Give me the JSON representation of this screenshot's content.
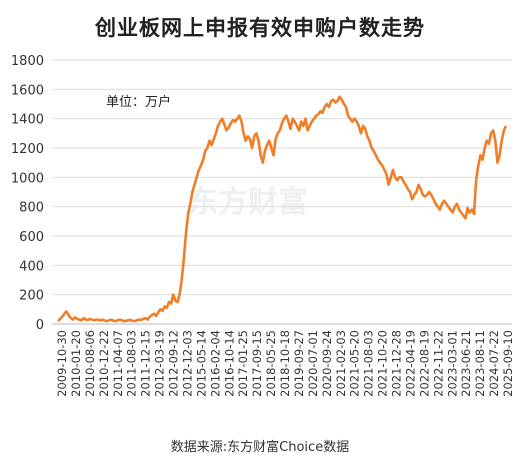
{
  "chart_data": {
    "type": "line",
    "title": "创业板网上申报有效申购户数走势",
    "unit_note": "单位：万户",
    "watermark": "东方财富",
    "source": "数据来源:东方财富Choice数据",
    "line_color": "#ef7e27",
    "ylim": [
      0,
      1800
    ],
    "y_ticks": [
      0,
      200,
      400,
      600,
      800,
      1000,
      1200,
      1400,
      1600,
      1800
    ],
    "x_tick_labels": [
      "2009-10-30",
      "2010-01-20",
      "2010-08-06",
      "2010-12-22",
      "2011-04-07",
      "2011-08-03",
      "2011-12-15",
      "2012-03-19",
      "2012-09-12",
      "2012-12-03",
      "2015-05-14",
      "2016-02-04",
      "2016-10-14",
      "2017-01-25",
      "2017-09-15",
      "2018-05-25",
      "2018-10-18",
      "2019-09-27",
      "2020-07-01",
      "2020-09-24",
      "2021-02-03",
      "2021-05-20",
      "2021-08-03",
      "2021-10-20",
      "2021-12-28",
      "2022-04-19",
      "2022-08-19",
      "2022-11-22",
      "2023-03-01",
      "2023-06-21",
      "2023-08-11",
      "2024-07-22",
      "2025-09-10"
    ],
    "series": [
      {
        "values": [
          20,
          35,
          50,
          70,
          85,
          60,
          40,
          30,
          45,
          35,
          30,
          25,
          40,
          30,
          28,
          35,
          30,
          25,
          30,
          28,
          25,
          30,
          22,
          20,
          25,
          30,
          22,
          20,
          25,
          30,
          25,
          20,
          22,
          25,
          28,
          22,
          20,
          25,
          30,
          28,
          35,
          40,
          30,
          50,
          60,
          70,
          55,
          80,
          100,
          90,
          120,
          110,
          150,
          140,
          200,
          160,
          150,
          200,
          300,
          450,
          620,
          750,
          820,
          900,
          950,
          1000,
          1050,
          1080,
          1120,
          1180,
          1200,
          1250,
          1220,
          1260,
          1300,
          1350,
          1380,
          1400,
          1360,
          1320,
          1340,
          1370,
          1390,
          1380,
          1400,
          1420,
          1380,
          1300,
          1250,
          1280,
          1260,
          1200,
          1280,
          1300,
          1250,
          1150,
          1100,
          1180,
          1220,
          1250,
          1200,
          1150,
          1260,
          1300,
          1320,
          1370,
          1400,
          1420,
          1380,
          1330,
          1400,
          1380,
          1350,
          1320,
          1380,
          1350,
          1400,
          1320,
          1350,
          1380,
          1400,
          1420,
          1430,
          1450,
          1440,
          1480,
          1500,
          1480,
          1520,
          1530,
          1510,
          1520,
          1550,
          1530,
          1500,
          1480,
          1420,
          1400,
          1380,
          1400,
          1380,
          1350,
          1300,
          1350,
          1330,
          1280,
          1250,
          1200,
          1180,
          1150,
          1120,
          1100,
          1080,
          1050,
          1020,
          950,
          1000,
          1050,
          1000,
          980,
          1000,
          1000,
          970,
          950,
          920,
          900,
          850,
          880,
          900,
          950,
          920,
          880,
          870,
          880,
          900,
          880,
          850,
          820,
          800,
          780,
          820,
          840,
          820,
          800,
          780,
          760,
          800,
          820,
          780,
          760,
          740,
          720,
          790,
          760,
          780,
          750,
          980,
          1080,
          1150,
          1120,
          1200,
          1250,
          1230,
          1300,
          1320,
          1250,
          1100,
          1150,
          1250,
          1320,
          1350
        ]
      }
    ]
  }
}
